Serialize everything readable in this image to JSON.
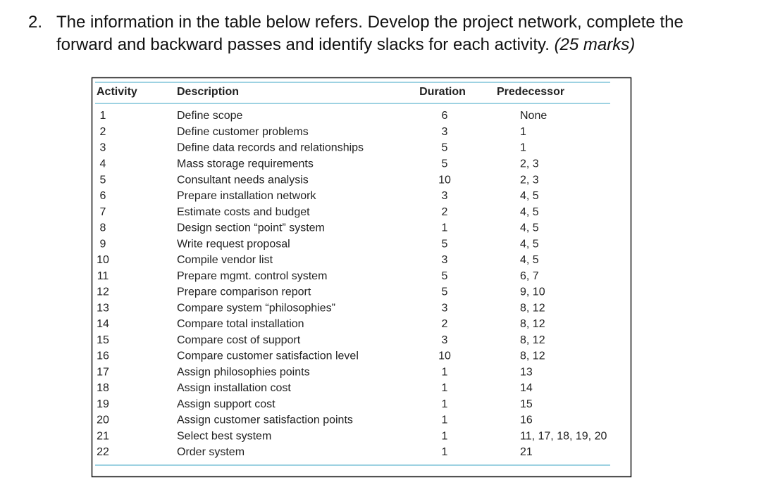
{
  "question": {
    "number": "2.",
    "line1": "The information in the table below refers. Develop the project network, complete the",
    "line2": "forward and backward passes and identify slacks for each activity.",
    "marks": "(25 marks)"
  },
  "table": {
    "header": [
      "Activity",
      "Description",
      "Duration",
      "Predecessor"
    ],
    "rows": [
      [
        "1",
        "Define scope",
        "6",
        "None"
      ],
      [
        "2",
        "Define customer problems",
        "3",
        "1"
      ],
      [
        "3",
        "Define data records and relationships",
        "5",
        "1"
      ],
      [
        "4",
        "Mass storage requirements",
        "5",
        "2, 3"
      ],
      [
        "5",
        "Consultant needs analysis",
        "10",
        "2, 3"
      ],
      [
        "6",
        "Prepare installation network",
        "3",
        "4, 5"
      ],
      [
        "7",
        "Estimate costs and budget",
        "2",
        "4, 5"
      ],
      [
        "8",
        "Design section “point” system",
        "1",
        "4, 5"
      ],
      [
        "9",
        "Write request proposal",
        "5",
        "4, 5"
      ],
      [
        "10",
        "Compile vendor list",
        "3",
        "4, 5"
      ],
      [
        "11",
        "Prepare mgmt. control system",
        "5",
        "6, 7"
      ],
      [
        "12",
        "Prepare comparison report",
        "5",
        "9, 10"
      ],
      [
        "13",
        "Compare system “philosophies”",
        "3",
        "8, 12"
      ],
      [
        "14",
        "Compare total installation",
        "2",
        "8, 12"
      ],
      [
        "15",
        "Compare cost of support",
        "3",
        "8, 12"
      ],
      [
        "16",
        "Compare customer satisfaction level",
        "10",
        "8, 12"
      ],
      [
        "17",
        "Assign philosophies points",
        "1",
        "13"
      ],
      [
        "18",
        "Assign installation cost",
        "1",
        "14"
      ],
      [
        "19",
        "Assign support cost",
        "1",
        "15"
      ],
      [
        "20",
        "Assign customer satisfaction points",
        "1",
        "16"
      ],
      [
        "21",
        "Select best system",
        "1",
        "11, 17, 18, 19, 20"
      ],
      [
        "22",
        "Order system",
        "1",
        "21"
      ]
    ]
  }
}
